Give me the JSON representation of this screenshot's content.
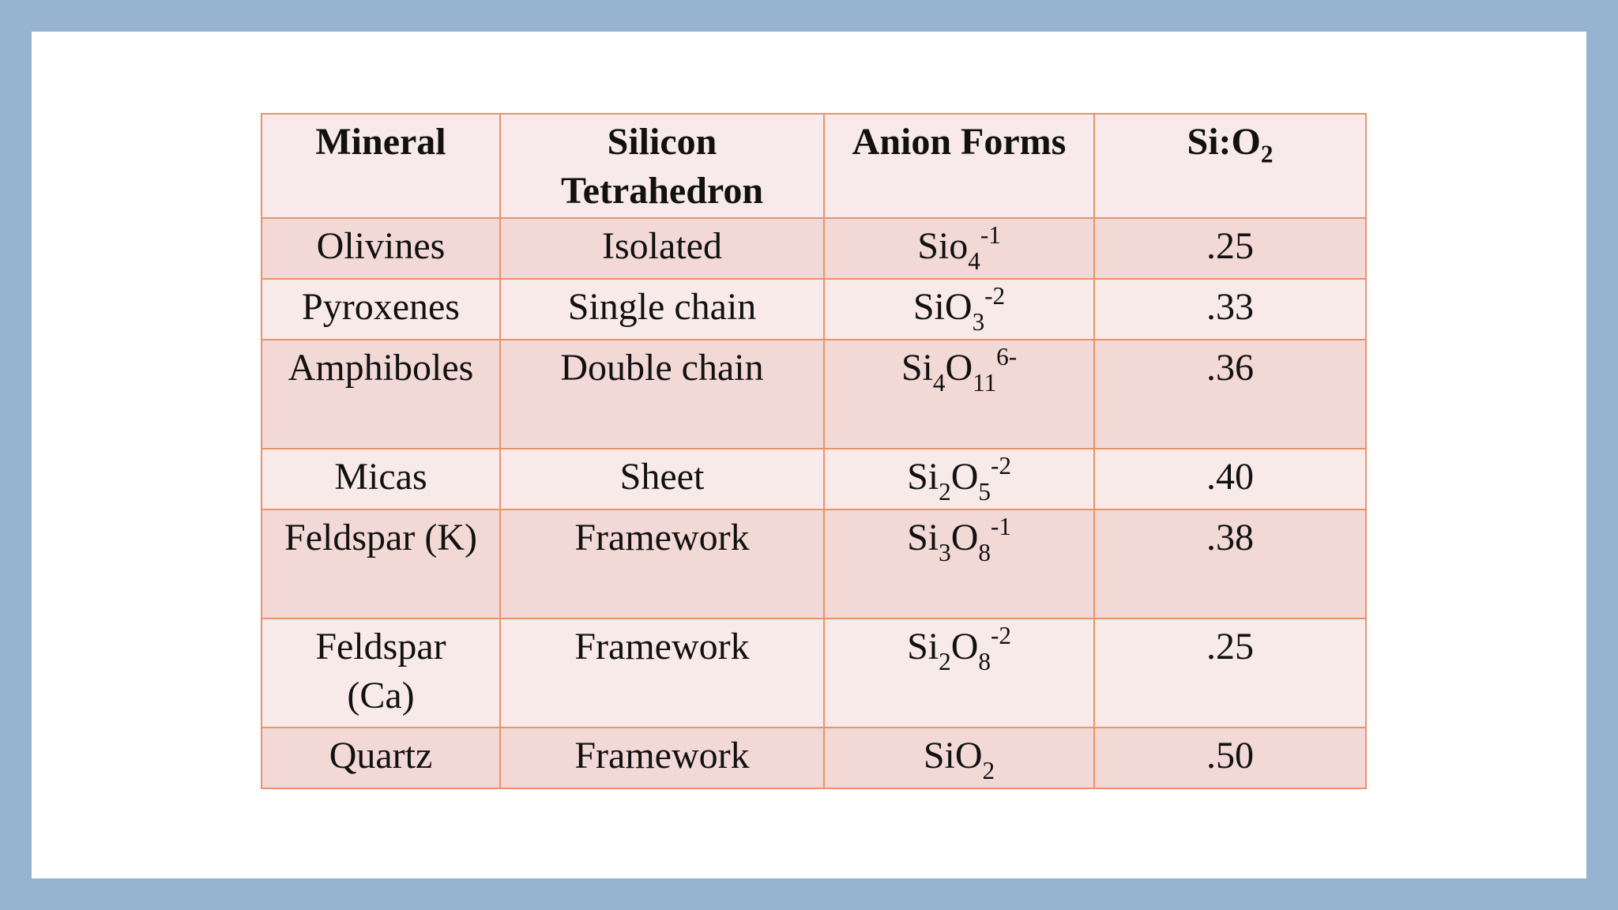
{
  "table": {
    "headers": {
      "mineral": "Mineral",
      "tetrahedron_line1": "Silicon",
      "tetrahedron_line2": "Tetrahedron",
      "anion": "Anion Forms",
      "ratio_base": "Si:O",
      "ratio_sub": "2"
    },
    "rows": [
      {
        "mineral": "Olivines",
        "tetrahedron": "Isolated",
        "anion": [
          {
            "t": "Sio"
          },
          {
            "sub": "4"
          },
          {
            "sup": "-1"
          }
        ],
        "ratio": ".25"
      },
      {
        "mineral": "Pyroxenes",
        "tetrahedron": "Single chain",
        "anion": [
          {
            "t": "SiO"
          },
          {
            "sub": "3"
          },
          {
            "sup": "-2"
          }
        ],
        "ratio": ".33"
      },
      {
        "mineral": "Amphiboles",
        "tetrahedron": "Double chain",
        "anion": [
          {
            "t": "Si"
          },
          {
            "sub": "4"
          },
          {
            "t": "O"
          },
          {
            "sub": "11"
          },
          {
            "sup": "6-"
          }
        ],
        "ratio": ".36"
      },
      {
        "mineral": "Micas",
        "tetrahedron": "Sheet",
        "anion": [
          {
            "t": "Si"
          },
          {
            "sub": "2"
          },
          {
            "t": "O"
          },
          {
            "sub": "5"
          },
          {
            "sup": "-2"
          }
        ],
        "ratio": ".40"
      },
      {
        "mineral": "Feldspar (K)",
        "tetrahedron": "Framework",
        "anion": [
          {
            "t": "Si"
          },
          {
            "sub": "3"
          },
          {
            "t": "O"
          },
          {
            "sub": "8"
          },
          {
            "sup": "-1"
          }
        ],
        "ratio": ".38"
      },
      {
        "mineral_line1": "Feldspar",
        "mineral_line2": "(Ca)",
        "tetrahedron": "Framework",
        "anion": [
          {
            "t": "Si"
          },
          {
            "sub": "2"
          },
          {
            "t": "O"
          },
          {
            "sub": "8"
          },
          {
            "sup": "-2"
          }
        ],
        "ratio": ".25"
      },
      {
        "mineral": "Quartz",
        "tetrahedron": "Framework",
        "anion": [
          {
            "t": "SiO"
          },
          {
            "sub": "2"
          }
        ],
        "ratio": ".50"
      }
    ]
  },
  "colors": {
    "frame": "#96b4cf",
    "border": "#e8946a",
    "row_dark": "#f2d9d6",
    "row_light": "#f9eaea"
  }
}
